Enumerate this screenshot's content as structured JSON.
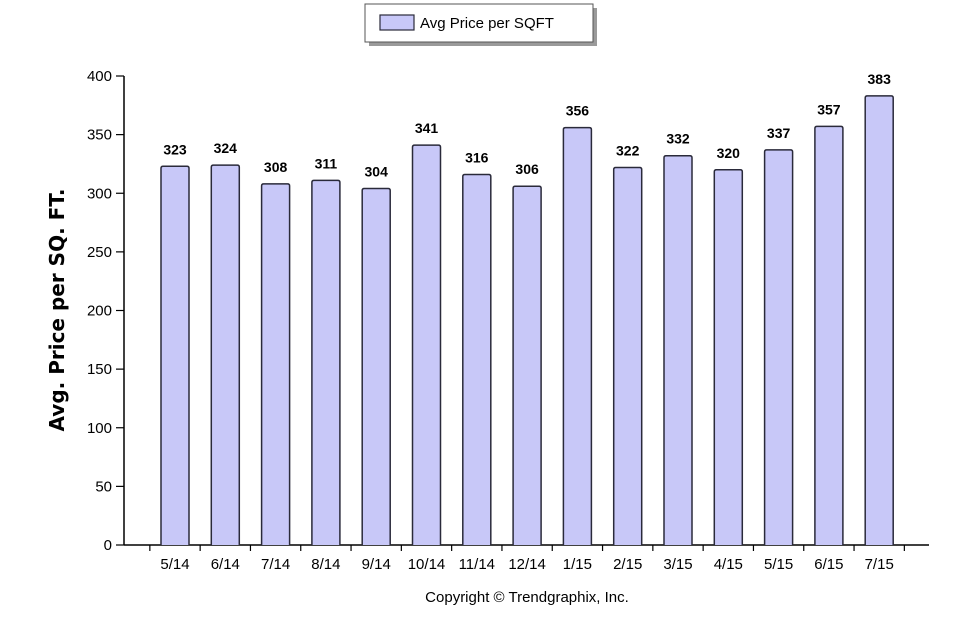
{
  "chart_data": {
    "type": "bar",
    "categories": [
      "5/14",
      "6/14",
      "7/14",
      "8/14",
      "9/14",
      "10/14",
      "11/14",
      "12/14",
      "1/15",
      "2/15",
      "3/15",
      "4/15",
      "5/15",
      "6/15",
      "7/15"
    ],
    "series": [
      {
        "name": "Avg Price per SQFT",
        "values": [
          323,
          324,
          308,
          311,
          304,
          341,
          316,
          306,
          356,
          322,
          332,
          320,
          337,
          357,
          383
        ]
      }
    ],
    "ylabel": "Avg. Price per SQ. FT.",
    "xlabel": "",
    "ylim": [
      0,
      400
    ],
    "yticks": [
      "0",
      "50",
      "100",
      "150",
      "200",
      "250",
      "300",
      "350",
      "400"
    ],
    "grid": false,
    "legend_position": "top-center",
    "data_labels": true,
    "colors": {
      "bar_fill": "#c8c8f8",
      "bar_stroke": "#2a2a3a",
      "axis": "#000000"
    }
  },
  "footer": {
    "copyright": "Copyright © Trendgraphix, Inc."
  }
}
